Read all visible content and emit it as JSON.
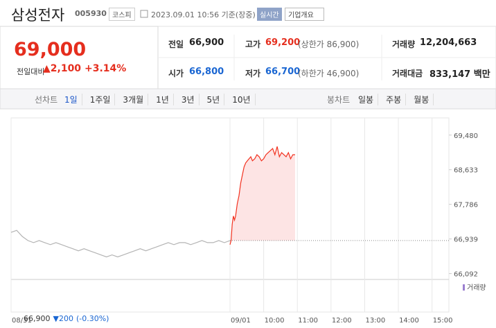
{
  "header": {
    "name": "삼성전자",
    "code": "005930",
    "market": "코스피",
    "time": "2023.09.01 10:56 기준(장중)",
    "realtime": "실시간",
    "menu": "기업개요"
  },
  "price": {
    "current": "69,000",
    "change_label": "전일대비",
    "change": "▲2,100",
    "change_pct": "+3.14%"
  },
  "stats": [
    {
      "label": "전일",
      "value": "66,900"
    },
    {
      "label": "고가",
      "value": "69,200",
      "note": "(상한가 86,900)"
    },
    {
      "label": "거래량",
      "value": "12,204,663"
    },
    {
      "label": "시가",
      "value": "66,800"
    },
    {
      "label": "저가",
      "value": "66,700",
      "note": "(하한가 46,900)"
    },
    {
      "label": "거래대금",
      "value": "833,147 백만"
    }
  ],
  "tabs": {
    "line_label": "선차트",
    "line": [
      "1일",
      "1주일",
      "3개월",
      "1년",
      "3년",
      "5년",
      "10년"
    ],
    "candle_label": "봉차트",
    "candle": [
      "일봉",
      "주봉",
      "월봉"
    ]
  },
  "chart_data": {
    "type": "line",
    "grid": "x",
    "volume_label": "거래량",
    "xlim": [
      0,
      780
    ],
    "xticks": [
      {
        "value": 0,
        "label": "08/31"
      },
      {
        "value": 390,
        "label": "09/01"
      },
      {
        "value": 450,
        "label": "10:00"
      },
      {
        "value": 510,
        "label": "11:00"
      },
      {
        "value": 570,
        "label": "12:00"
      },
      {
        "value": 630,
        "label": "13:00"
      },
      {
        "value": 690,
        "label": "14:00"
      },
      {
        "value": 750,
        "label": "15:00"
      }
    ],
    "ylim": [
      66000,
      69900
    ],
    "yticks": [
      {
        "value": 66092,
        "label": "66,092"
      },
      {
        "value": 66939,
        "label": "66,939"
      },
      {
        "value": 67786,
        "label": "67,786"
      },
      {
        "value": 68633,
        "label": "68,633"
      },
      {
        "value": 69480,
        "label": "69,480"
      }
    ],
    "reference_value": 66900,
    "reference_color": "#888888",
    "fill_color": "#fde4e4",
    "series": [
      {
        "color": "#b4b4b4",
        "x": [
          0,
          10,
          20,
          30,
          40,
          50,
          60,
          70,
          80,
          90,
          100,
          110,
          120,
          130,
          140,
          150,
          160,
          170,
          180,
          190,
          200,
          210,
          220,
          230,
          240,
          250,
          260,
          270,
          280,
          290,
          300,
          310,
          320,
          330,
          340,
          350,
          360,
          370,
          380,
          390
        ],
        "values": [
          67100,
          67150,
          67000,
          66900,
          66850,
          66900,
          66850,
          66800,
          66850,
          66800,
          66750,
          66700,
          66650,
          66700,
          66650,
          66600,
          66550,
          66500,
          66550,
          66500,
          66550,
          66600,
          66650,
          66700,
          66650,
          66700,
          66750,
          66800,
          66850,
          66800,
          66850,
          66850,
          66800,
          66850,
          66900,
          66850,
          66850,
          66900,
          66850,
          66900
        ]
      },
      {
        "color": "#f2311f",
        "fill": true,
        "x": [
          390,
          392,
          394,
          396,
          398,
          400,
          403,
          406,
          409,
          412,
          415,
          418,
          421,
          424,
          427,
          430,
          434,
          438,
          442,
          446,
          450,
          454,
          458,
          462,
          466,
          470,
          474,
          478,
          482,
          486,
          490,
          494,
          498,
          502,
          506
        ],
        "values": [
          66800,
          66900,
          67300,
          67500,
          67400,
          67500,
          67800,
          68000,
          68300,
          68500,
          68700,
          68800,
          68850,
          68900,
          68950,
          68850,
          68900,
          69000,
          68950,
          68850,
          68900,
          69000,
          69050,
          69100,
          69150,
          69000,
          69200,
          68950,
          69050,
          69000,
          68950,
          69050,
          68900,
          69000,
          69000
        ]
      }
    ]
  },
  "footer": {
    "price": "66,900",
    "change": "▼200",
    "pct": "(-0.30%)"
  }
}
